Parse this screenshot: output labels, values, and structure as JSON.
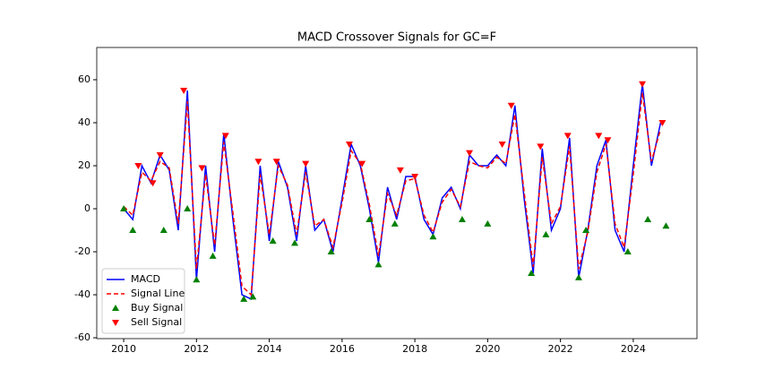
{
  "chart_data": {
    "type": "line",
    "title": "MACD Crossover Signals for GC=F",
    "x": [
      2010,
      2010.25,
      2010.5,
      2010.75,
      2011,
      2011.25,
      2011.5,
      2011.75,
      2012,
      2012.25,
      2012.5,
      2012.75,
      2013,
      2013.25,
      2013.5,
      2013.75,
      2014,
      2014.25,
      2014.5,
      2014.75,
      2015,
      2015.25,
      2015.5,
      2015.75,
      2016,
      2016.25,
      2016.5,
      2016.75,
      2017,
      2017.25,
      2017.5,
      2017.75,
      2018,
      2018.25,
      2018.5,
      2018.75,
      2019,
      2019.25,
      2019.5,
      2019.75,
      2020,
      2020.25,
      2020.5,
      2020.75,
      2021,
      2021.25,
      2021.5,
      2021.75,
      2022,
      2022.25,
      2022.5,
      2022.75,
      2023,
      2023.25,
      2023.5,
      2023.75,
      2024,
      2024.25,
      2024.5,
      2024.75
    ],
    "series": [
      {
        "name": "MACD",
        "color": "#0000ff",
        "linestyle": "solid",
        "values": [
          0,
          -5,
          20,
          12,
          25,
          18,
          -10,
          55,
          -33,
          20,
          -20,
          35,
          -5,
          -40,
          -42,
          20,
          -15,
          22,
          10,
          -15,
          20,
          -10,
          -5,
          -20,
          5,
          30,
          20,
          0,
          -25,
          10,
          -5,
          15,
          15,
          -5,
          -12,
          5,
          10,
          0,
          25,
          20,
          20,
          25,
          20,
          48,
          5,
          -30,
          28,
          -10,
          0,
          33,
          -32,
          -10,
          20,
          32,
          -10,
          -20,
          20,
          58,
          20,
          40
        ]
      },
      {
        "name": "Signal Line",
        "color": "#ff0000",
        "linestyle": "dashed",
        "values": [
          1,
          -3,
          17,
          13,
          22,
          19,
          -7,
          50,
          -28,
          16,
          -17,
          31,
          -2,
          -36,
          -40,
          16,
          -12,
          20,
          11,
          -12,
          17,
          -8,
          -5,
          -18,
          3,
          27,
          21,
          2,
          -22,
          7,
          -3,
          13,
          14,
          -3,
          -11,
          3,
          9,
          1,
          22,
          20,
          19,
          24,
          21,
          44,
          8,
          -27,
          24,
          -7,
          1,
          29,
          -28,
          -11,
          17,
          30,
          -7,
          -18,
          16,
          54,
          22,
          37
        ]
      },
      {
        "name": "Buy Signal",
        "color": "#008000",
        "marker": "triangle-up",
        "x": [
          2010,
          2010.25,
          2011.1,
          2011.75,
          2012,
          2012.45,
          2013.3,
          2013.55,
          2014.1,
          2014.7,
          2015.7,
          2016.75,
          2017,
          2017.45,
          2018.5,
          2019.3,
          2020,
          2021.2,
          2021.6,
          2022.5,
          2022.7,
          2023.85,
          2024.4,
          2024.9
        ],
        "values": [
          0,
          -10,
          -10,
          0,
          -33,
          -22,
          -42,
          -41,
          -15,
          -16,
          -20,
          -5,
          -26,
          -7,
          -13,
          -5,
          -7,
          -30,
          -12,
          -32,
          -10,
          -20,
          -5,
          -8
        ]
      },
      {
        "name": "Sell Signal",
        "color": "#ff0000",
        "marker": "triangle-down",
        "x": [
          2010.4,
          2010.8,
          2011,
          2011.65,
          2012.15,
          2012.8,
          2013.7,
          2014.2,
          2015,
          2016.2,
          2016.55,
          2017.6,
          2018,
          2019.5,
          2020.4,
          2020.65,
          2021.45,
          2022.2,
          2023.05,
          2023.3,
          2024.25,
          2024.8
        ],
        "values": [
          20,
          12,
          25,
          55,
          19,
          34,
          22,
          22,
          21,
          30,
          21,
          18,
          15,
          26,
          30,
          48,
          29,
          34,
          34,
          32,
          58,
          40
        ]
      }
    ],
    "xlim": [
      2009.26,
      2025.75
    ],
    "xticks": [
      2010,
      2012,
      2014,
      2016,
      2018,
      2020,
      2022,
      2024
    ],
    "ylim": [
      -60.4,
      75
    ],
    "yticks": [
      -60,
      -40,
      -20,
      0,
      20,
      40,
      60
    ],
    "grid": false,
    "legend": "lower left"
  }
}
